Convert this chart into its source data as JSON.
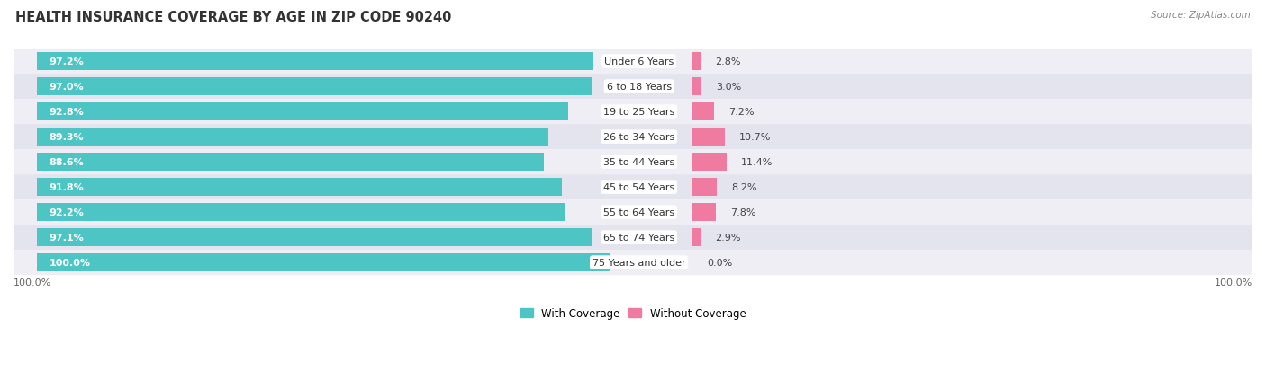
{
  "title": "HEALTH INSURANCE COVERAGE BY AGE IN ZIP CODE 90240",
  "source": "Source: ZipAtlas.com",
  "categories": [
    "Under 6 Years",
    "6 to 18 Years",
    "19 to 25 Years",
    "26 to 34 Years",
    "35 to 44 Years",
    "45 to 54 Years",
    "55 to 64 Years",
    "65 to 74 Years",
    "75 Years and older"
  ],
  "with_coverage": [
    97.2,
    97.0,
    92.8,
    89.3,
    88.6,
    91.8,
    92.2,
    97.1,
    100.0
  ],
  "without_coverage": [
    2.8,
    3.0,
    7.2,
    10.7,
    11.4,
    8.2,
    7.8,
    2.9,
    0.0
  ],
  "color_with": "#4ec5c5",
  "color_without": "#f07ba0",
  "bg_row_even": "#eeeef4",
  "bg_row_odd": "#e4e4ee",
  "title_fontsize": 10.5,
  "bar_label_fontsize": 8,
  "cat_label_fontsize": 8,
  "legend_fontsize": 8.5,
  "source_fontsize": 7.5,
  "total_width": 100.0,
  "label_zone_pct": 10.0,
  "pink_scale": 0.18
}
